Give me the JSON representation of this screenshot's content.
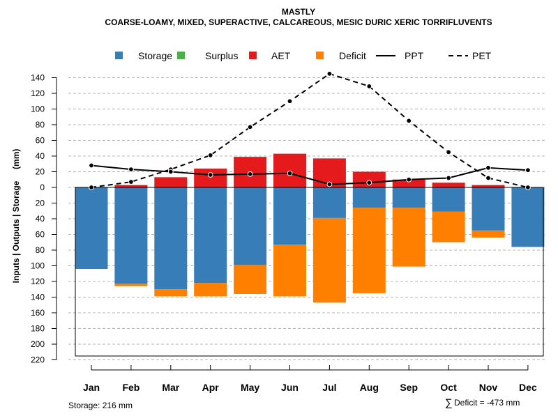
{
  "chart_data": {
    "type": "bar",
    "title": "MASTLY",
    "subtitle": "COARSE-LOAMY, MIXED, SUPERACTIVE, CALCAREOUS, MESIC DURIC XERIC TORRIFLUVENTS",
    "ylabel": "Inputs | Outputs | Storage     (mm)",
    "ylim": [
      -220,
      150
    ],
    "y_ticks": [
      140,
      120,
      100,
      80,
      60,
      40,
      20,
      0,
      -20,
      -40,
      -60,
      -80,
      -100,
      -120,
      -140,
      -160,
      -180,
      -200,
      -220
    ],
    "y_tick_labels": [
      "140",
      "120",
      "100",
      "80",
      "60",
      "40",
      "20",
      "0",
      "20",
      "40",
      "60",
      "80",
      "100",
      "120",
      "140",
      "160",
      "180",
      "200",
      "220"
    ],
    "categories": [
      "Jan",
      "Feb",
      "Mar",
      "Apr",
      "May",
      "Jun",
      "Jul",
      "Aug",
      "Sep",
      "Oct",
      "Nov",
      "Dec"
    ],
    "grid": true,
    "legend_position": "top",
    "legend": [
      {
        "name": "Storage",
        "kind": "box",
        "color": "#377EB8"
      },
      {
        "name": "Surplus",
        "kind": "box",
        "color": "#4DAF4A"
      },
      {
        "name": "AET",
        "kind": "box",
        "color": "#E41A1C"
      },
      {
        "name": "Deficit",
        "kind": "box",
        "color": "#FF7F00"
      },
      {
        "name": "PPT",
        "kind": "solid",
        "color": "#000000"
      },
      {
        "name": "PET",
        "kind": "dashed",
        "color": "#000000"
      }
    ],
    "series": [
      {
        "name": "Storage",
        "color": "#377EB8",
        "values": [
          104,
          123,
          130,
          122,
          99,
          73,
          39,
          26,
          26,
          31,
          55,
          76
        ]
      },
      {
        "name": "Deficit",
        "color": "#FF7F00",
        "values": [
          0,
          3,
          9,
          17,
          37,
          66,
          108,
          109,
          75,
          39,
          9,
          0
        ]
      },
      {
        "name": "Surplus",
        "color": "#4DAF4A",
        "values": [
          0,
          0,
          0,
          0,
          0,
          0,
          0,
          0,
          0,
          0,
          0,
          0
        ]
      },
      {
        "name": "AET",
        "color": "#E41A1C",
        "values": [
          0,
          3,
          13,
          24,
          39,
          43,
          37,
          20,
          10,
          6,
          3,
          0
        ]
      },
      {
        "name": "PPT",
        "color": "#000000",
        "values": [
          28,
          23,
          20,
          16,
          17,
          18,
          4,
          6,
          10,
          12,
          25,
          22
        ]
      },
      {
        "name": "PET",
        "color": "#000000",
        "values": [
          0,
          7,
          23,
          41,
          77,
          110,
          145,
          129,
          85,
          45,
          12,
          0
        ]
      }
    ],
    "storage_label": "Storage: 216 mm",
    "deficit_sigma": "∑",
    "deficit_label": "Deficit = -473 mm",
    "total_storage_mm": 216
  }
}
